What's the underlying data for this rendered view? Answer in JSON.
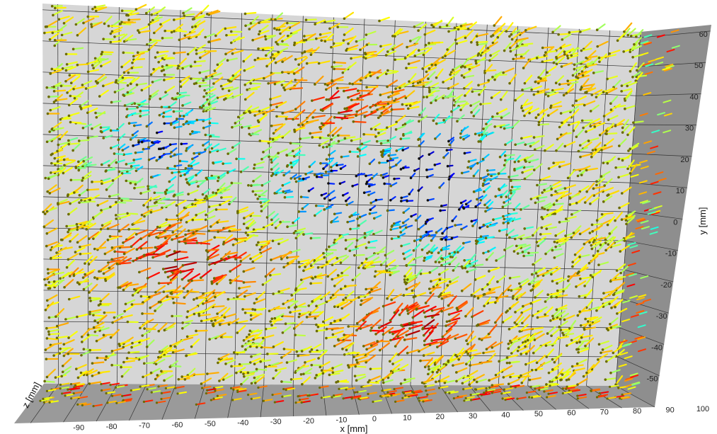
{
  "chart_data": {
    "type": "scatter",
    "title": "",
    "xlabel": "x [mm]",
    "ylabel": "y [mm]",
    "zlabel": "z [mm]",
    "x_ticks": [
      -90,
      -80,
      -70,
      -60,
      -50,
      -40,
      -30,
      -20,
      -10,
      0,
      10,
      20,
      30,
      40,
      50,
      60,
      70,
      80,
      90,
      100
    ],
    "y_ticks": [
      60,
      50,
      40,
      30,
      20,
      10,
      0,
      -10,
      -20,
      -30,
      -40,
      -50
    ],
    "xlim": [
      -95,
      100
    ],
    "ylim": [
      -60,
      62
    ],
    "grid": true,
    "colormap": "jet",
    "colors": {
      "back_wall": "#d6d6d6",
      "side_wall": "#8e8e8e",
      "floor": "#9a9a9a",
      "grid": "#2a2a2a"
    },
    "vortex_regions": [
      {
        "x": -55,
        "y": 18,
        "speed": "low"
      },
      {
        "x": 35,
        "y": 18,
        "speed": "low"
      },
      {
        "x": 0,
        "y": 5,
        "speed": "low"
      },
      {
        "x": 40,
        "y": -5,
        "speed": "low"
      }
    ],
    "high_speed_regions": [
      {
        "x": 5,
        "y": 30,
        "speed": "high"
      },
      {
        "x": -50,
        "y": -20,
        "speed": "high"
      },
      {
        "x": 30,
        "y": -40,
        "speed": "high"
      }
    ]
  }
}
